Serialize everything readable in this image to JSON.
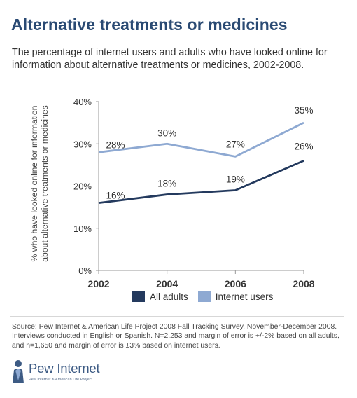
{
  "title": "Alternative treatments or medicines",
  "subtitle": "The percentage of internet users and adults who have looked online for information about alternative treatments or medicines, 2002-2008.",
  "ylabel": "% who have looked online for information about alternative treatments or medicines",
  "source": "Source: Pew Internet & American Life Project 2008 Fall Tracking Survey, November-December 2008. Interviews conducted in English or Spanish. N=2,253 and margin of error is +/-2% based on all adults, and n=1,650 and margin of error is ±3% based on internet users.",
  "logo": {
    "name": "Pew Internet",
    "tagline": "Pew Internet & American Life Project"
  },
  "colors": {
    "all_adults": "#243a5e",
    "internet_users": "#8ea9d2",
    "title": "#2a4a73"
  },
  "chart_data": {
    "type": "line",
    "x": [
      2002,
      2004,
      2006,
      2008
    ],
    "series": [
      {
        "name": "All adults",
        "values": [
          16,
          18,
          19,
          26
        ],
        "labels": [
          "16%",
          "18%",
          "19%",
          "26%"
        ]
      },
      {
        "name": "Internet users",
        "values": [
          28,
          30,
          27,
          35
        ],
        "labels": [
          "28%",
          "30%",
          "27%",
          "35%"
        ]
      }
    ],
    "ylim": [
      0,
      40
    ],
    "yticks": [
      "0%",
      "10%",
      "20%",
      "30%",
      "40%"
    ],
    "xticks": [
      "2002",
      "2004",
      "2006",
      "2008"
    ],
    "grid": false,
    "legend_position": "bottom"
  }
}
